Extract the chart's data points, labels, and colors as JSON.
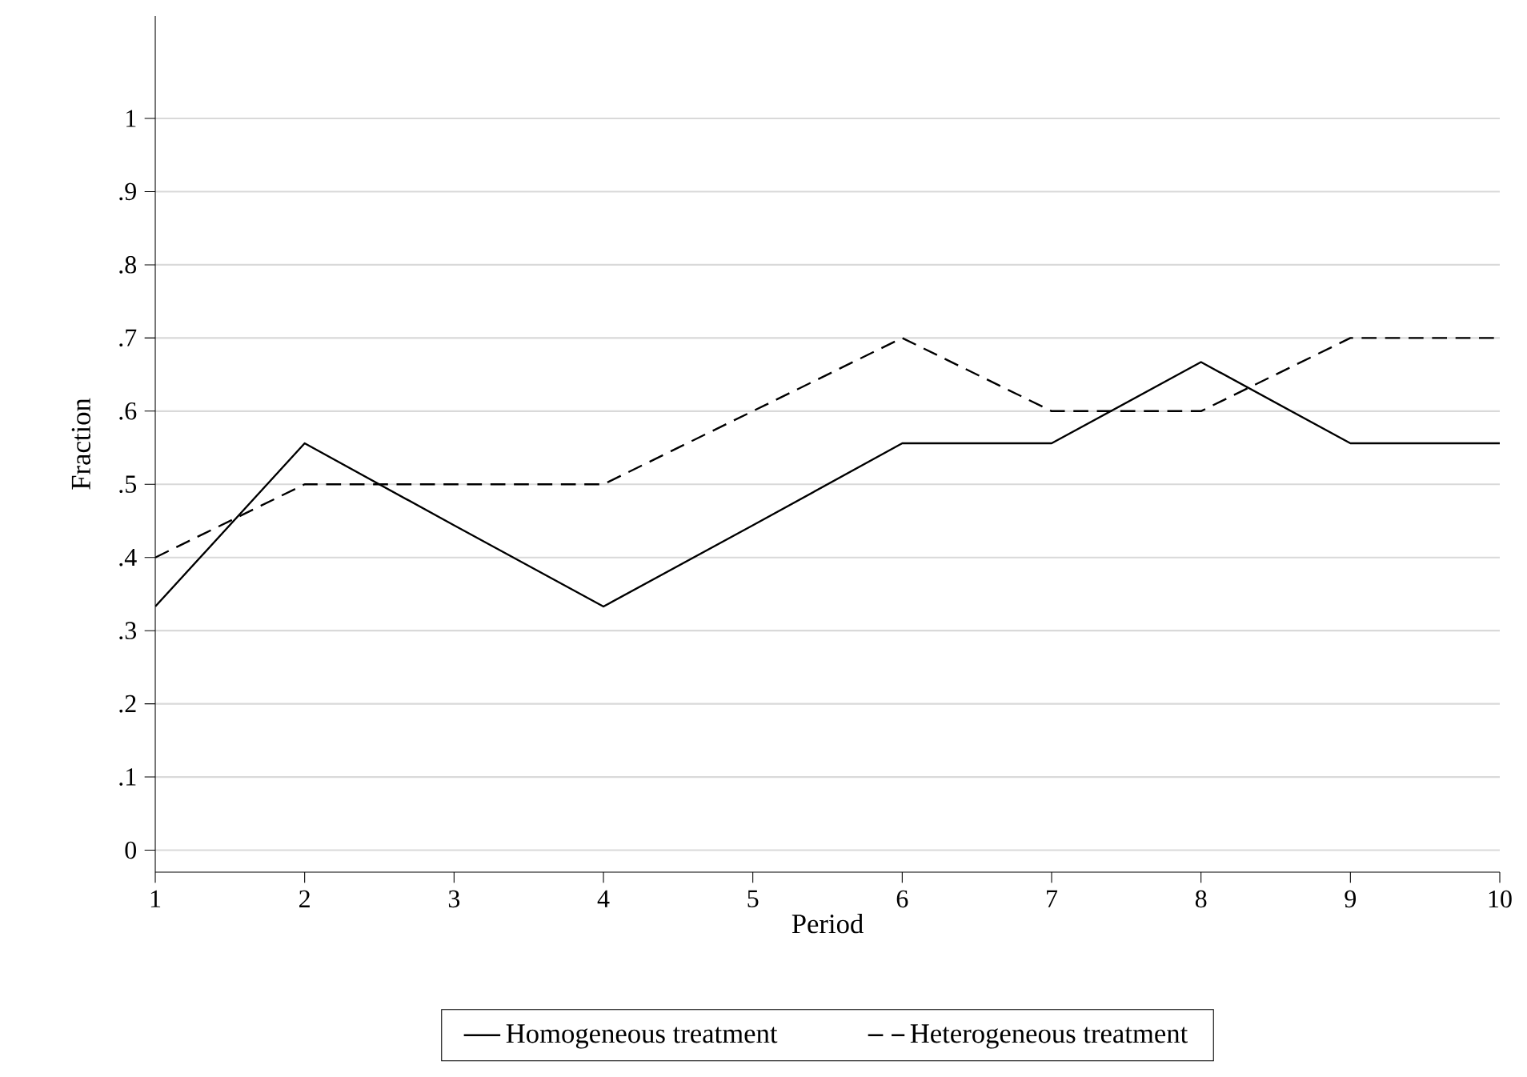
{
  "chart_data": {
    "type": "line",
    "xlabel": "Period",
    "ylabel": "Fraction",
    "x": [
      1,
      2,
      3,
      4,
      5,
      6,
      7,
      8,
      9,
      10
    ],
    "series": [
      {
        "name": "Homogeneous treatment",
        "color": "#000000",
        "line_style": "solid",
        "values": [
          0.333,
          0.556,
          0.444,
          0.333,
          0.444,
          0.556,
          0.556,
          0.667,
          0.556,
          0.556
        ]
      },
      {
        "name": "Heterogeneous treatment",
        "color": "#000000",
        "line_style": "dashed",
        "values": [
          0.4,
          0.5,
          0.5,
          0.5,
          0.6,
          0.7,
          0.6,
          0.6,
          0.7,
          0.7
        ]
      }
    ],
    "xlim": [
      1,
      10
    ],
    "ylim": [
      -0.03,
      1.14
    ],
    "xticks": [
      1,
      2,
      3,
      4,
      5,
      6,
      7,
      8,
      9,
      10
    ],
    "yticks": [
      0,
      {
        "value": 0.1,
        "label": ".1"
      },
      {
        "value": 0.2,
        "label": ".2"
      },
      {
        "value": 0.3,
        "label": ".3"
      },
      {
        "value": 0.4,
        "label": ".4"
      },
      {
        "value": 0.5,
        "label": ".5"
      },
      {
        "value": 0.6,
        "label": ".6"
      },
      {
        "value": 0.7,
        "label": ".7"
      },
      {
        "value": 0.8,
        "label": ".8"
      },
      {
        "value": 0.9,
        "label": ".9"
      },
      1
    ],
    "grid": "y",
    "legend": "bottom"
  }
}
